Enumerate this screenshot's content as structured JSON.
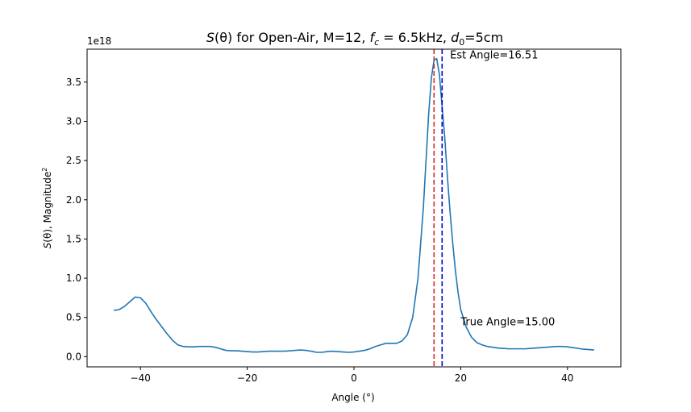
{
  "chart_data": {
    "type": "line",
    "title_parts": {
      "s": "S",
      "theta_open": "(θ)",
      "mid": " for Open-Air, M=12, ",
      "f": "f",
      "f_sub": "c",
      "f_eq": " = 6.5kHz, ",
      "d": "d",
      "d_sub": "0",
      "d_eq": "=5cm"
    },
    "xlabel": "Angle (°)",
    "ylabel_parts": {
      "s": "S",
      "rest": "(θ), Magnitude",
      "sup": "2"
    },
    "offset_text": "1e18",
    "xlim": [
      -50,
      50
    ],
    "ylim": [
      -0.13,
      3.92
    ],
    "xticks": [
      -40,
      -20,
      0,
      20,
      40
    ],
    "xtick_labels": [
      "−40",
      "−20",
      "0",
      "20",
      "40"
    ],
    "yticks": [
      0.0,
      0.5,
      1.0,
      1.5,
      2.0,
      2.5,
      3.0,
      3.5
    ],
    "ytick_labels": [
      "0.0",
      "0.5",
      "1.0",
      "1.5",
      "2.0",
      "2.5",
      "3.0",
      "3.5"
    ],
    "grid": false,
    "series": [
      {
        "color": "#1f77b4",
        "x": [
          -45,
          -44,
          -43,
          -42,
          -41,
          -40,
          -39,
          -38,
          -37,
          -36,
          -35,
          -34,
          -33,
          -32,
          -31,
          -30,
          -29,
          -28,
          -27,
          -26,
          -25,
          -24,
          -23,
          -22,
          -21,
          -20,
          -19,
          -18,
          -17,
          -16,
          -15,
          -14,
          -13,
          -12,
          -11,
          -10,
          -9,
          -8,
          -7,
          -6,
          -5,
          -4,
          -3,
          -2,
          -1,
          0,
          1,
          2,
          3,
          4,
          5,
          6,
          7,
          8,
          9,
          10,
          11,
          12,
          13,
          13.5,
          14,
          14.5,
          15,
          15.5,
          16,
          16.5,
          17,
          17.5,
          18,
          18.5,
          19,
          19.5,
          20,
          21,
          22,
          23,
          24,
          25,
          26,
          27,
          28,
          29,
          30,
          31,
          32,
          33,
          34,
          35,
          36,
          37,
          38,
          39,
          40,
          41,
          42,
          43,
          44,
          45
        ],
        "y": [
          0.59,
          0.6,
          0.64,
          0.7,
          0.76,
          0.75,
          0.68,
          0.57,
          0.47,
          0.38,
          0.29,
          0.21,
          0.15,
          0.13,
          0.125,
          0.125,
          0.13,
          0.13,
          0.13,
          0.12,
          0.1,
          0.08,
          0.075,
          0.075,
          0.07,
          0.065,
          0.06,
          0.06,
          0.065,
          0.07,
          0.07,
          0.07,
          0.07,
          0.075,
          0.08,
          0.085,
          0.08,
          0.07,
          0.055,
          0.055,
          0.065,
          0.07,
          0.065,
          0.06,
          0.055,
          0.06,
          0.07,
          0.08,
          0.1,
          0.13,
          0.15,
          0.17,
          0.17,
          0.17,
          0.2,
          0.28,
          0.5,
          1.0,
          1.9,
          2.5,
          3.1,
          3.55,
          3.78,
          3.8,
          3.6,
          3.2,
          2.8,
          2.3,
          1.85,
          1.45,
          1.1,
          0.82,
          0.6,
          0.38,
          0.25,
          0.18,
          0.15,
          0.13,
          0.12,
          0.11,
          0.105,
          0.1,
          0.1,
          0.1,
          0.1,
          0.105,
          0.11,
          0.115,
          0.12,
          0.125,
          0.13,
          0.13,
          0.125,
          0.115,
          0.105,
          0.095,
          0.09,
          0.085
        ]
      }
    ],
    "vlines": [
      {
        "x": 15.0,
        "color": "#d62728",
        "style": "dashed"
      },
      {
        "x": 16.51,
        "color": "#0000cc",
        "style": "dashed"
      }
    ],
    "annotations": [
      {
        "text": "Est Angle=16.51",
        "x": 18.0,
        "y": 3.8
      },
      {
        "text": "True Angle=15.00",
        "x": 20.0,
        "y": 0.4
      }
    ]
  }
}
